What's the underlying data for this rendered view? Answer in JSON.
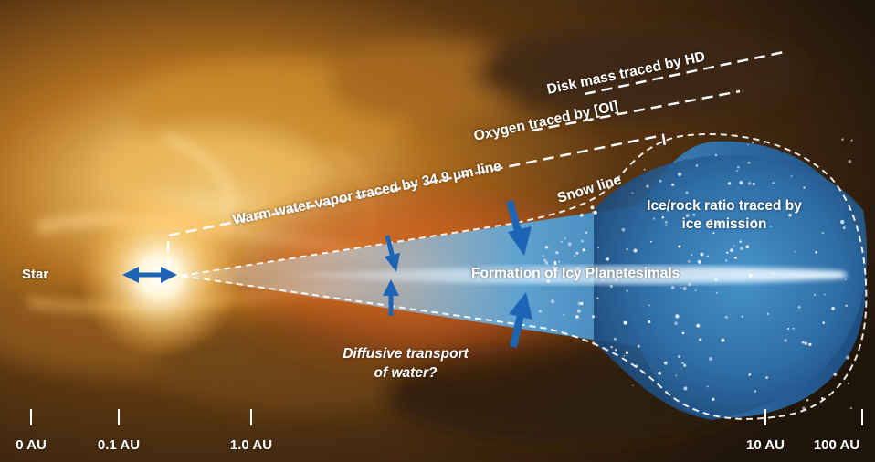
{
  "labels": {
    "star": "Star",
    "disk_mass": "Disk mass traced by HD",
    "oxygen": "Oxygen traced by [OI]",
    "warm_water": "Warm water vapor traced by 34.9 µm line",
    "snow_line": "Snow line",
    "ice_rock_line1": "Ice/rock ratio traced by",
    "ice_rock_line2": "ice emission",
    "planetesimals": "Formation of Icy Planetesimals",
    "diffusive_line1": "Diffusive transport",
    "diffusive_line2": "of water?"
  },
  "axis": {
    "ticks": [
      "0 AU",
      "0.1 AU",
      "1.0 AU",
      "10 AU",
      "100 AU"
    ]
  },
  "colors": {
    "arrow": "#1e64b4",
    "disk_glow": "#4fa3d8",
    "background_warm": "#c77a1e",
    "dashed_line": "#ffffff"
  }
}
